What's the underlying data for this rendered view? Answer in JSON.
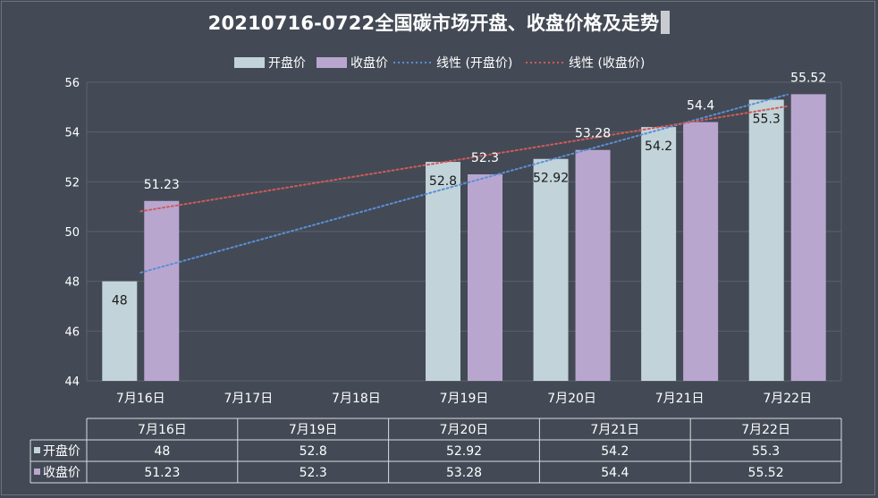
{
  "title": "20210716-0722全国碳市场开盘、收盘价格及走势",
  "legend": {
    "open": "开盘价",
    "close": "收盘价",
    "trend_open": "线性 (开盘价)",
    "trend_close": "线性 (收盘价)"
  },
  "colors": {
    "open_bar": "#c2d3d9",
    "close_bar": "#b9a6cf",
    "trend_open": "#5b8fd6",
    "trend_close": "#d05a5a",
    "grid": "#5b626c"
  },
  "chart_data": {
    "type": "bar",
    "title": "20210716-0722全国碳市场开盘、收盘价格及走势",
    "categories": [
      "7月16日",
      "7月17日",
      "7月18日",
      "7月19日",
      "7月20日",
      "7月21日",
      "7月22日"
    ],
    "series": [
      {
        "name": "开盘价",
        "values": [
          48,
          null,
          null,
          52.8,
          52.92,
          54.2,
          55.3
        ]
      },
      {
        "name": "收盘价",
        "values": [
          51.23,
          null,
          null,
          52.3,
          53.28,
          54.4,
          55.52
        ]
      }
    ],
    "trendlines": [
      {
        "name": "线性 (开盘价)",
        "series": "开盘价",
        "style": "dotted"
      },
      {
        "name": "线性 (收盘价)",
        "series": "收盘价",
        "style": "dotted"
      }
    ],
    "ylim": [
      44,
      56
    ],
    "yticks": [
      44,
      46,
      48,
      50,
      52,
      54,
      56
    ],
    "xlabel": "",
    "ylabel": "",
    "grid": true,
    "legend_position": "top"
  },
  "table": {
    "headers": [
      "7月16日",
      "7月19日",
      "7月20日",
      "7月21日",
      "7月22日"
    ],
    "rows": [
      {
        "label": "开盘价",
        "values": [
          "48",
          "52.8",
          "52.92",
          "54.2",
          "55.3"
        ]
      },
      {
        "label": "收盘价",
        "values": [
          "51.23",
          "52.3",
          "53.28",
          "54.4",
          "55.52"
        ]
      }
    ]
  }
}
